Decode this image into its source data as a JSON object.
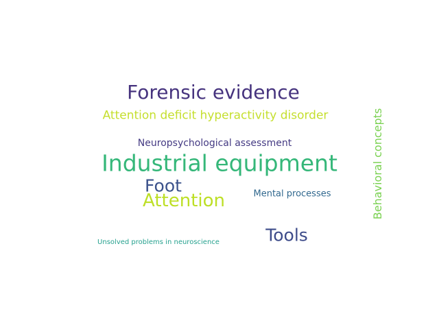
{
  "words": [
    {
      "text": "Forensic evidence",
      "color": "#46337e"
    },
    {
      "text": "Attention deficit hyperactivity disorder",
      "color": "#c5df2e"
    },
    {
      "text": "Neuropsychological assessment",
      "color": "#443a83"
    },
    {
      "text": "Industrial equipment",
      "color": "#35b779"
    },
    {
      "text": "Foot",
      "color": "#3b528b"
    },
    {
      "text": "Attention",
      "color": "#bddf26"
    },
    {
      "text": "Mental processes",
      "color": "#31688e"
    },
    {
      "text": "Tools",
      "color": "#3e4c8a"
    },
    {
      "text": "Unsolved problems in neuroscience",
      "color": "#25a18e"
    },
    {
      "text": "Behavioral concepts",
      "color": "#7ad151"
    }
  ]
}
